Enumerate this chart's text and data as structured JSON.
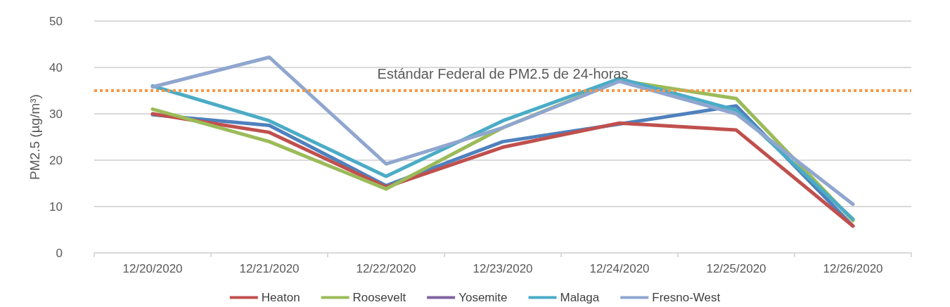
{
  "chart_data": {
    "type": "line",
    "ylabel": "PM2.5 (µg/m³)",
    "categories": [
      "12/20/2020",
      "12/21/2020",
      "12/22/2020",
      "12/23/2020",
      "12/24/2020",
      "12/25/2020",
      "12/26/2020"
    ],
    "series": [
      {
        "color": "#4f81bd",
        "values": [
          29.8,
          27.5,
          14.5,
          24,
          27.8,
          31.7,
          5.8
        ]
      },
      {
        "name": "Heaton",
        "color": "#c0504d",
        "values": [
          30,
          26,
          14.2,
          22.8,
          28,
          26.5,
          5.8
        ]
      },
      {
        "name": "Roosevelt",
        "color": "#9bbb59",
        "values": [
          31,
          24,
          13.8,
          27,
          37.2,
          33.3,
          7
        ]
      },
      {
        "name": "Yosemite",
        "color": "#8064a2",
        "values": [
          null,
          null,
          null,
          null,
          null,
          null,
          null
        ]
      },
      {
        "name": "Malaga",
        "color": "#4bacc6",
        "values": [
          36,
          28.5,
          16.5,
          28.5,
          37.6,
          30.8,
          7.3
        ]
      },
      {
        "name": "Fresno-West",
        "color": "#8fa6cf",
        "values": [
          35.8,
          42.2,
          19.2,
          27,
          37,
          30,
          10.5
        ]
      }
    ],
    "ylim": [
      0,
      50
    ],
    "yticks": [
      0,
      10,
      20,
      30,
      40,
      50
    ],
    "grid": "y",
    "legend": "bottom",
    "marker": "none",
    "line_style": "solid",
    "ref_lines": [
      {
        "axis": "y",
        "value": 35,
        "label": "Estándar Federal de PM2.5 de 24-horas",
        "color": "#f79646",
        "line_style": "dotted"
      }
    ]
  }
}
